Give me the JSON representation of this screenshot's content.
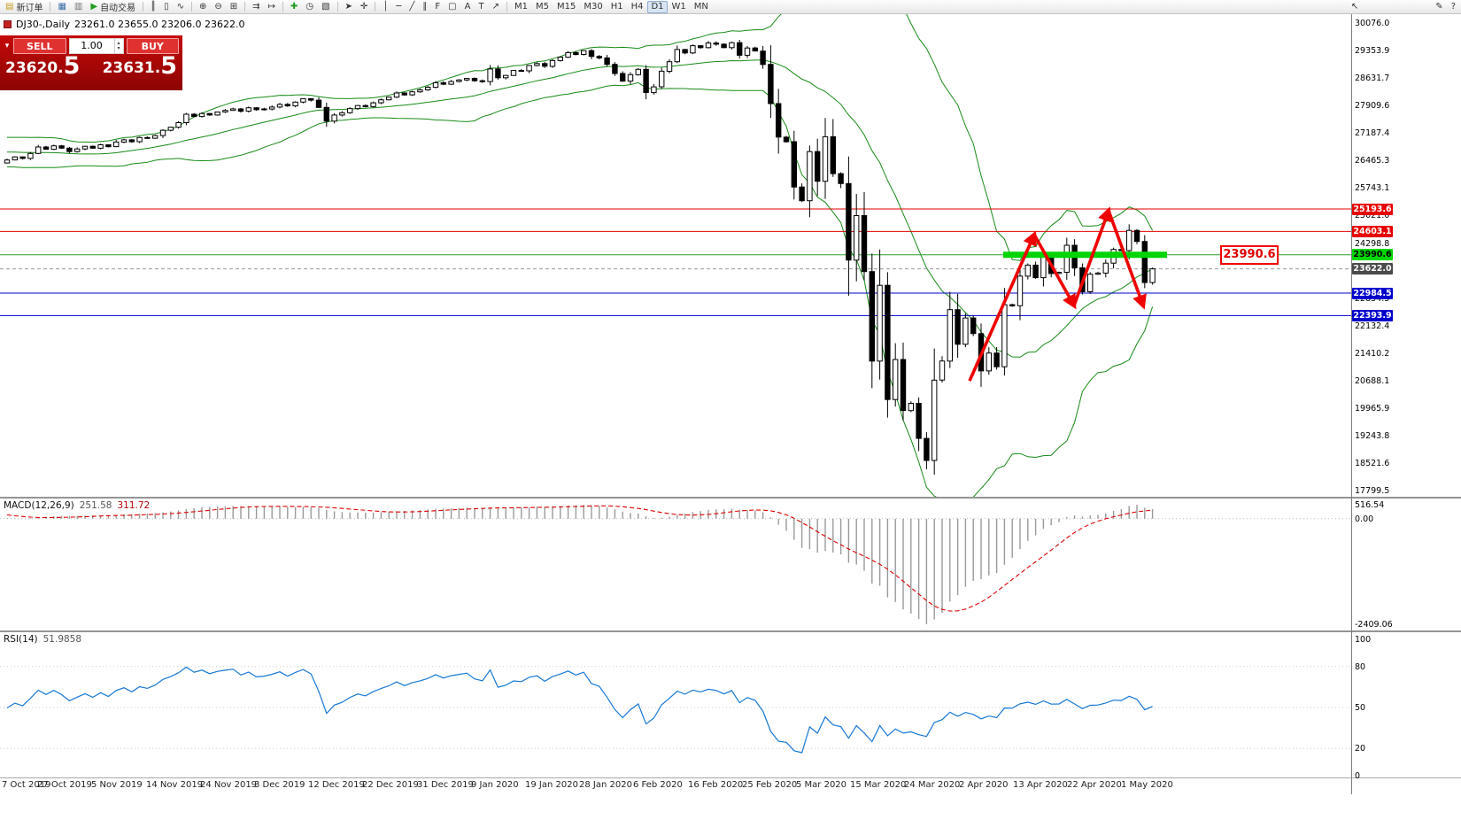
{
  "toolbar": {
    "groups": [
      {
        "items": [
          {
            "name": "new-order",
            "glyph": "▤",
            "glyph_color": "#c59a1a",
            "label": "新订单"
          }
        ]
      },
      {
        "items": [
          {
            "name": "charts-window",
            "glyph": "▦",
            "glyph_color": "#3a6ea5"
          },
          {
            "name": "profiles",
            "glyph": "▥",
            "glyph_color": "#707070"
          },
          {
            "name": "autotrade",
            "glyph": "▶",
            "glyph_color": "#1f9d1f",
            "label": "自动交易"
          }
        ]
      },
      {
        "items": [
          {
            "name": "bar-chart-type",
            "glyph": "║"
          },
          {
            "name": "candlestick-type",
            "glyph": "▯"
          },
          {
            "name": "line-chart-type",
            "glyph": "∿"
          }
        ]
      },
      {
        "items": [
          {
            "name": "zoom-in",
            "glyph": "⊕"
          },
          {
            "name": "zoom-out",
            "glyph": "⊖"
          },
          {
            "name": "tile-windows",
            "glyph": "⊞"
          }
        ]
      },
      {
        "items": [
          {
            "name": "auto-scroll",
            "glyph": "⇉"
          },
          {
            "name": "chart-shift",
            "glyph": "↦"
          }
        ]
      },
      {
        "items": [
          {
            "name": "indicators-add",
            "glyph": "✚",
            "glyph_color": "#1f9d1f"
          },
          {
            "name": "period-selector",
            "glyph": "◷"
          },
          {
            "name": "templates",
            "glyph": "▧"
          }
        ]
      },
      {
        "items": [
          {
            "name": "cursor-tool",
            "glyph": "➤"
          },
          {
            "name": "crosshair-tool",
            "glyph": "✛"
          }
        ]
      },
      {
        "items": [
          {
            "name": "vertical-line-tool",
            "glyph": "│"
          },
          {
            "name": "horizontal-line-tool",
            "glyph": "─"
          },
          {
            "name": "trendline-tool",
            "glyph": "╱"
          },
          {
            "name": "channel-tool",
            "glyph": "∥"
          },
          {
            "name": "fibonacci-tool",
            "glyph": "F"
          },
          {
            "name": "shapes-tool",
            "glyph": "▢"
          },
          {
            "name": "text-tool",
            "glyph": "A"
          },
          {
            "name": "label-tool",
            "glyph": "T"
          },
          {
            "name": "arrow-tool",
            "glyph": "↗"
          }
        ]
      },
      {
        "items": [
          {
            "name": "tf-m1",
            "label": "M1"
          },
          {
            "name": "tf-m5",
            "label": "M5"
          },
          {
            "name": "tf-m15",
            "label": "M15"
          },
          {
            "name": "tf-m30",
            "label": "M30"
          },
          {
            "name": "tf-h1",
            "label": "H1"
          },
          {
            "name": "tf-h4",
            "label": "H4"
          },
          {
            "name": "tf-d1",
            "label": "D1",
            "active": true
          },
          {
            "name": "tf-w1",
            "label": "W1"
          },
          {
            "name": "tf-mn",
            "label": "MN"
          }
        ]
      }
    ],
    "right_items": [
      {
        "name": "pointer",
        "glyph": "↖"
      },
      {
        "name": "edit",
        "glyph": "✎"
      },
      {
        "name": "help",
        "glyph": "?"
      }
    ]
  },
  "chart_data": {
    "type": "candlestick",
    "symbol": "DJ30-",
    "period": "Daily",
    "title_symbol": "DJ30-,Daily",
    "title_ohlc": "23261.0 23655.0 23206.0 23622.0",
    "last_ohlc": [
      23261.0,
      23655.0,
      23206.0,
      23622.0
    ],
    "price_min": 17799.5,
    "price_max": 30076.0,
    "x_labels": [
      "7 Oct 2019",
      "27 Oct 2019",
      "5 Nov 2019",
      "14 Nov 2019",
      "24 Nov 2019",
      "3 Dec 2019",
      "12 Dec 2019",
      "22 Dec 2019",
      "31 Dec 2019",
      "9 Jan 2020",
      "19 Jan 2020",
      "28 Jan 2020",
      "6 Feb 2020",
      "16 Feb 2020",
      "25 Feb 2020",
      "5 Mar 2020",
      "15 Mar 2020",
      "24 Mar 2020",
      "2 Apr 2020",
      "13 Apr 2020",
      "22 Apr 2020",
      "1 May 2020"
    ],
    "pre_closes": [
      25920,
      26050,
      26180,
      26100,
      26250,
      26350,
      26300,
      26410,
      26480,
      26400,
      26350,
      26420,
      26500,
      26550,
      26480,
      26520,
      26600,
      26660,
      26720,
      26780,
      26820,
      26890,
      26950,
      27010,
      26940,
      26870,
      26820,
      26760,
      26660,
      26580,
      26450,
      26350,
      26480,
      26520,
      26400
    ],
    "closes": [
      26480,
      26560,
      26520,
      26650,
      26820,
      26760,
      26850,
      26790,
      26700,
      26770,
      26840,
      26790,
      26880,
      26830,
      26950,
      27010,
      26960,
      27070,
      27050,
      27120,
      27260,
      27340,
      27460,
      27680,
      27620,
      27700,
      27660,
      27740,
      27780,
      27820,
      27760,
      27850,
      27800,
      27820,
      27870,
      27940,
      27900,
      28000,
      28090,
      28050,
      27860,
      27500,
      27660,
      27720,
      27830,
      27910,
      27880,
      27980,
      28060,
      28130,
      28240,
      28190,
      28270,
      28320,
      28390,
      28510,
      28470,
      28540,
      28580,
      28620,
      28560,
      28540,
      28870,
      28640,
      28700,
      28830,
      28820,
      28960,
      29010,
      28940,
      29090,
      29180,
      29300,
      29250,
      29350,
      29200,
      29160,
      28990,
      28750,
      28550,
      28720,
      28860,
      28250,
      28400,
      28810,
      29060,
      29380,
      29290,
      29480,
      29430,
      29550,
      29520,
      29430,
      29560,
      29230,
      29420,
      29340,
      28990,
      27960,
      27080,
      26960,
      25770,
      25410,
      26700,
      25920,
      27090,
      26120,
      25860,
      23850,
      25020,
      23550,
      21200,
      23190,
      20190,
      21240,
      19900,
      20090,
      19170,
      18590,
      20700,
      21200,
      22550,
      21640,
      22330,
      21920,
      20940,
      21410,
      21050,
      22680,
      22650,
      23430,
      23720,
      23390,
      23950,
      23500,
      23530,
      24240,
      23650,
      23020,
      23480,
      23510,
      23770,
      24130,
      24100,
      24630,
      24340,
      23260,
      23622
    ],
    "lines": [
      {
        "price": 25193.6,
        "label": "25193.6",
        "color": "#e60000",
        "chip_bg": "#e60000"
      },
      {
        "price": 24603.1,
        "label": "24603.1",
        "color": "#e60000",
        "chip_bg": "#e60000"
      },
      {
        "price": 23990.6,
        "label": "23990.6",
        "color": "#2ea12e",
        "chip_bg": "#00d800",
        "chip_text": "#000000",
        "thick_segment": [
          1133,
          1318
        ]
      },
      {
        "price": 23622.0,
        "label": "23622.0",
        "color": "#999999",
        "chip_bg": "#4a4a4a",
        "style": "current"
      },
      {
        "price": 22984.5,
        "label": "22984.5",
        "color": "#0000cc",
        "chip_bg": "#0000cc"
      },
      {
        "price": 22393.9,
        "label": "22393.9",
        "color": "#0000cc",
        "chip_bg": "#0000cc"
      }
    ],
    "annotations": {
      "zigzag_arrows": [
        [
          1095,
          20680
        ],
        [
          1168,
          24520
        ],
        [
          1213,
          22660
        ],
        [
          1252,
          25150
        ],
        [
          1291,
          22660
        ]
      ],
      "price_callout": {
        "text": "23990.6"
      }
    },
    "indicators": {
      "bollinger": {
        "period": 20,
        "deviation": 2
      },
      "macd": {
        "fast": 12,
        "slow": 26,
        "signal": 9
      },
      "rsi": {
        "period": 14
      }
    }
  },
  "price_axis": {
    "ticks": [
      "30076.0",
      "29353.9",
      "28631.7",
      "27909.6",
      "27187.4",
      "26465.3",
      "25743.1",
      "25021.0",
      "24298.8",
      "23576.7",
      "22854.5",
      "22132.4",
      "21410.2",
      "20688.1",
      "19965.9",
      "19243.8",
      "18521.6",
      "17799.5"
    ]
  },
  "macd": {
    "name": "MACD(12,26,9)",
    "value1": "251.58",
    "value2": "311.72",
    "axis": [
      "516.54",
      "0.00",
      "-2409.06"
    ]
  },
  "rsi": {
    "name": "RSI(14)",
    "value": "51.9858",
    "axis": [
      "100",
      "80",
      "50",
      "20",
      "0"
    ]
  },
  "trade_panel": {
    "sell_label": "SELL",
    "buy_label": "BUY",
    "volume": "1.00",
    "sell_price": "23620.",
    "sell_price_big": "5",
    "buy_price": "23631.",
    "buy_price_big": "5"
  }
}
